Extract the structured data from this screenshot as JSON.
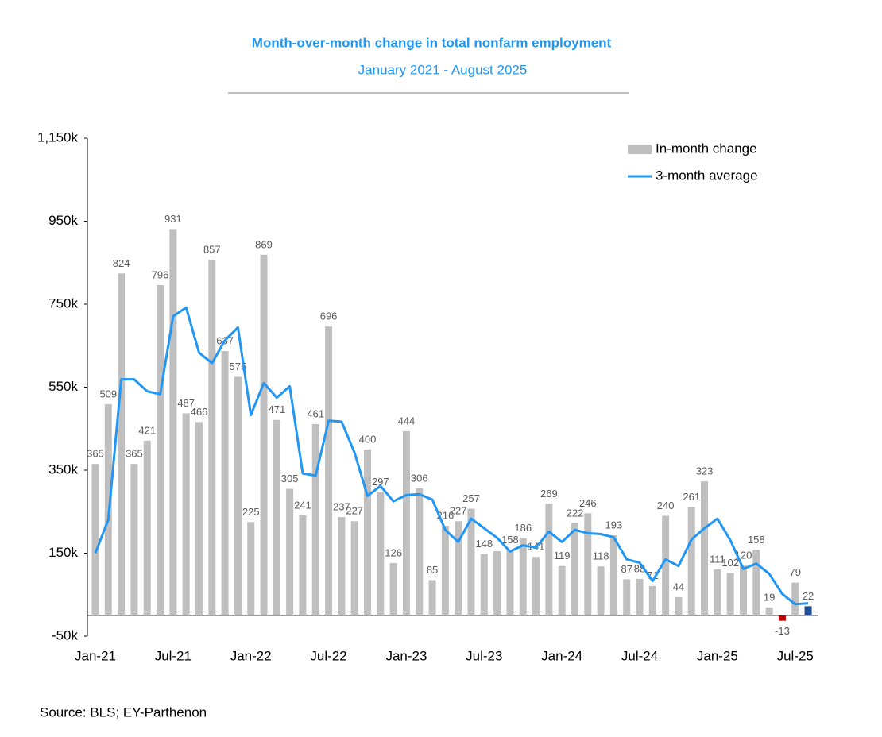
{
  "chart_data": {
    "type": "bar_line",
    "title": "Month-over-month change in total nonfarm employment",
    "subtitle": "January 2021 - August 2025",
    "source": "Source: BLS; EY-Parthenon",
    "categories": [
      "Jan-21",
      null,
      null,
      null,
      null,
      null,
      "Jul-21",
      null,
      null,
      null,
      null,
      null,
      "Jan-22",
      null,
      null,
      null,
      null,
      null,
      "Jul-22",
      null,
      null,
      null,
      null,
      null,
      "Jan-23",
      null,
      null,
      null,
      null,
      null,
      "Jul-23",
      null,
      null,
      null,
      null,
      null,
      "Jan-24",
      null,
      null,
      null,
      null,
      null,
      "Jul-24",
      null,
      null,
      null,
      null,
      null,
      "Jan-25",
      null,
      null,
      null,
      null,
      null,
      "Jul-25",
      null
    ],
    "series": [
      {
        "name": "In-month change",
        "type": "bar",
        "color": "#bfbfbf",
        "values": [
          365,
          509,
          824,
          365,
          421,
          796,
          931,
          487,
          466,
          857,
          637,
          575,
          225,
          869,
          471,
          305,
          241,
          461,
          696,
          237,
          227,
          400,
          297,
          126,
          444,
          306,
          85,
          216,
          227,
          257,
          148,
          155,
          158,
          186,
          141,
          269,
          119,
          222,
          246,
          118,
          193,
          87,
          88,
          71,
          240,
          44,
          261,
          323,
          111,
          102,
          120,
          158,
          19,
          -13,
          79,
          22
        ],
        "value_labels": [
          "365",
          "509",
          "824",
          "365",
          "421",
          "796",
          "931",
          "487",
          "466",
          "857",
          "637",
          "575",
          "225",
          "869",
          "471",
          "305",
          "241",
          "461",
          "696",
          "237",
          "227",
          "400",
          "297",
          "126",
          "444",
          "306",
          "85",
          "216",
          "227",
          "257",
          "148",
          null,
          "158",
          "186",
          "141",
          "269",
          "119",
          "222",
          "246",
          "118",
          "193",
          "87",
          "88",
          "71",
          "240",
          "44",
          "261",
          "323",
          "111",
          "102",
          "120",
          "158",
          "19",
          "-13",
          "79",
          "22"
        ],
        "bar_colors": [
          "#bfbfbf",
          "#bfbfbf",
          "#bfbfbf",
          "#bfbfbf",
          "#bfbfbf",
          "#bfbfbf",
          "#bfbfbf",
          "#bfbfbf",
          "#bfbfbf",
          "#bfbfbf",
          "#bfbfbf",
          "#bfbfbf",
          "#bfbfbf",
          "#bfbfbf",
          "#bfbfbf",
          "#bfbfbf",
          "#bfbfbf",
          "#bfbfbf",
          "#bfbfbf",
          "#bfbfbf",
          "#bfbfbf",
          "#bfbfbf",
          "#bfbfbf",
          "#bfbfbf",
          "#bfbfbf",
          "#bfbfbf",
          "#bfbfbf",
          "#bfbfbf",
          "#bfbfbf",
          "#bfbfbf",
          "#bfbfbf",
          "#bfbfbf",
          "#bfbfbf",
          "#bfbfbf",
          "#bfbfbf",
          "#bfbfbf",
          "#bfbfbf",
          "#bfbfbf",
          "#bfbfbf",
          "#bfbfbf",
          "#bfbfbf",
          "#bfbfbf",
          "#bfbfbf",
          "#bfbfbf",
          "#bfbfbf",
          "#bfbfbf",
          "#bfbfbf",
          "#bfbfbf",
          "#bfbfbf",
          "#bfbfbf",
          "#bfbfbf",
          "#bfbfbf",
          "#bfbfbf",
          "#c00000",
          "#bfbfbf",
          "#1f4e9a"
        ]
      },
      {
        "name": "3-month average",
        "type": "line",
        "color": "#2196f3",
        "values": [
          150,
          231,
          569,
          569,
          540,
          533,
          721,
          742,
          633,
          608,
          663,
          694,
          483,
          560,
          525,
          552,
          342,
          337,
          469,
          467,
          392,
          288,
          312,
          275,
          290,
          292,
          279,
          206,
          177,
          233,
          210,
          187,
          154,
          169,
          163,
          202,
          177,
          206,
          198,
          196,
          188,
          135,
          127,
          83,
          135,
          119,
          183,
          210,
          233,
          181,
          112,
          125,
          100,
          52,
          27,
          29
        ]
      }
    ],
    "ylim": [
      -50,
      1150
    ],
    "yticks": [
      {
        "value": -50,
        "label": "-50k"
      },
      {
        "value": 150,
        "label": "150k"
      },
      {
        "value": 350,
        "label": "350k"
      },
      {
        "value": 550,
        "label": "550k"
      },
      {
        "value": 750,
        "label": "750k"
      },
      {
        "value": 950,
        "label": "950k"
      },
      {
        "value": 1150,
        "label": "1,150k"
      }
    ],
    "legend": "top-right"
  }
}
